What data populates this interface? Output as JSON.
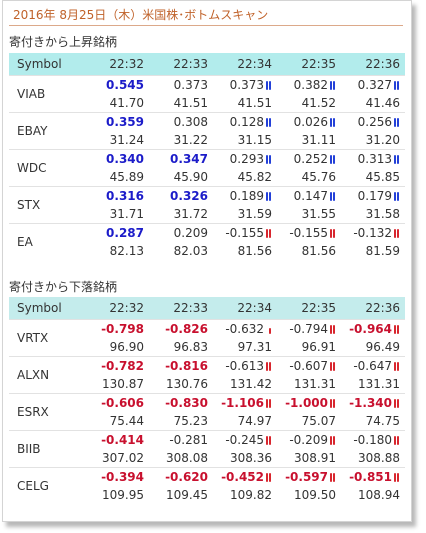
{
  "title": "2016年 8月25日（木）米国株･ボトムスキャン",
  "colors": {
    "up": "#1c1cc9",
    "down": "#c8102e",
    "title": "#c0622a",
    "header_bg": "#b2ecec"
  },
  "up_section": {
    "heading": "寄付きから上昇銘柄",
    "columns": [
      "Symbol",
      "22:32",
      "22:33",
      "22:34",
      "22:35",
      "22:36"
    ],
    "rows": [
      {
        "symbol": "VIAB",
        "change": [
          "0.545",
          "0.373",
          "0.373",
          "0.382",
          "0.327"
        ],
        "price": [
          "41.70",
          "41.51",
          "41.51",
          "41.52",
          "41.46"
        ]
      },
      {
        "symbol": "EBAY",
        "change": [
          "0.359",
          "0.308",
          "0.128",
          "0.026",
          "0.256"
        ],
        "price": [
          "31.24",
          "31.22",
          "31.15",
          "31.11",
          "31.20"
        ]
      },
      {
        "symbol": "WDC",
        "change": [
          "0.340",
          "0.347",
          "0.293",
          "0.252",
          "0.313"
        ],
        "price": [
          "45.89",
          "45.90",
          "45.82",
          "45.76",
          "45.85"
        ]
      },
      {
        "symbol": "STX",
        "change": [
          "0.316",
          "0.326",
          "0.189",
          "0.147",
          "0.179"
        ],
        "price": [
          "31.71",
          "31.72",
          "31.59",
          "31.55",
          "31.58"
        ]
      },
      {
        "symbol": "EA",
        "change": [
          "0.287",
          "0.209",
          "-0.155",
          "-0.155",
          "-0.132"
        ],
        "price": [
          "82.13",
          "82.03",
          "81.56",
          "81.56",
          "81.59"
        ]
      }
    ]
  },
  "down_section": {
    "heading": "寄付きから下落銘柄",
    "columns": [
      "Symbol",
      "22:32",
      "22:33",
      "22:34",
      "22:35",
      "22:36"
    ],
    "rows": [
      {
        "symbol": "VRTX",
        "change": [
          "-0.798",
          "-0.826",
          "-0.632",
          "-0.794",
          "-0.964"
        ],
        "price": [
          "96.90",
          "96.83",
          "97.31",
          "96.91",
          "96.49"
        ]
      },
      {
        "symbol": "ALXN",
        "change": [
          "-0.782",
          "-0.816",
          "-0.613",
          "-0.607",
          "-0.647"
        ],
        "price": [
          "130.87",
          "130.76",
          "131.42",
          "131.31",
          "131.31"
        ]
      },
      {
        "symbol": "ESRX",
        "change": [
          "-0.606",
          "-0.830",
          "-1.106",
          "-1.000",
          "-1.340"
        ],
        "price": [
          "75.44",
          "75.23",
          "74.97",
          "75.07",
          "74.75"
        ]
      },
      {
        "symbol": "BIIB",
        "change": [
          "-0.414",
          "-0.281",
          "-0.245",
          "-0.209",
          "-0.180"
        ],
        "price": [
          "307.02",
          "308.08",
          "308.36",
          "308.91",
          "308.88"
        ]
      },
      {
        "symbol": "CELG",
        "change": [
          "-0.394",
          "-0.620",
          "-0.452",
          "-0.597",
          "-0.851"
        ],
        "price": [
          "109.95",
          "109.45",
          "109.82",
          "109.50",
          "108.94"
        ]
      }
    ]
  }
}
